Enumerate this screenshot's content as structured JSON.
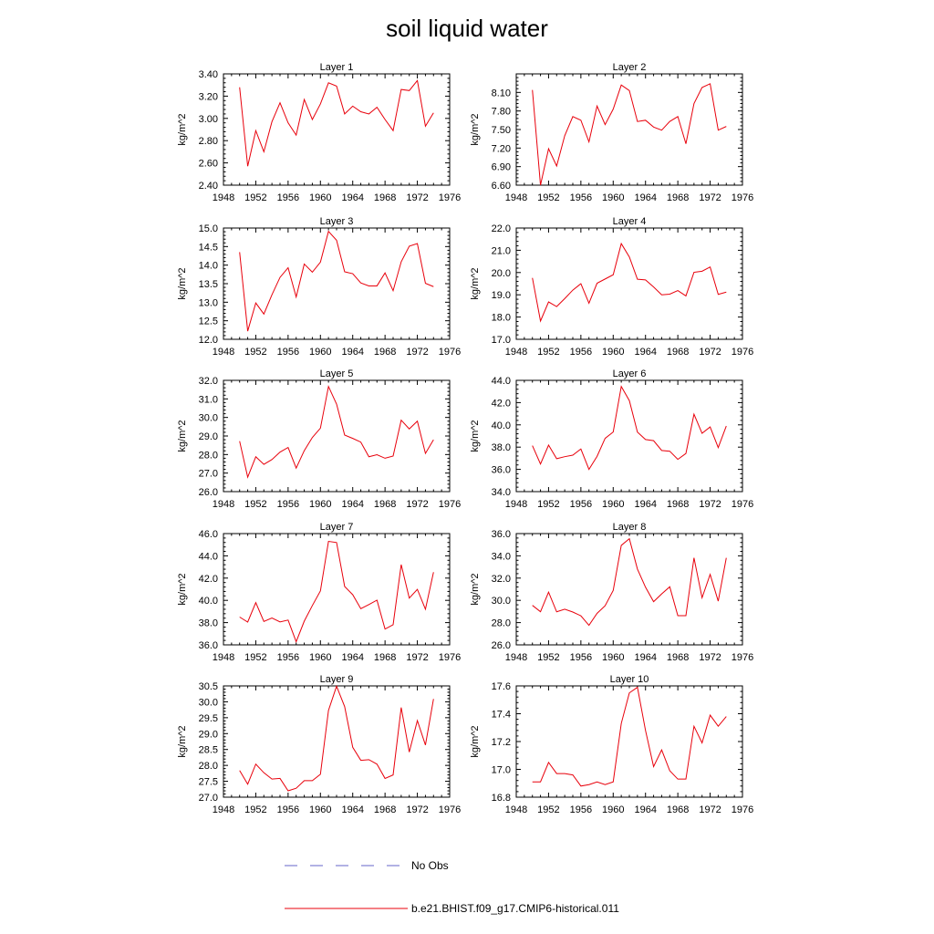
{
  "title": "soil liquid water",
  "legend": {
    "entries": [
      {
        "label": "No Obs",
        "color": "#6464c8",
        "style": "dashed"
      },
      {
        "label": "b.e21.BHIST.f09_g17.CMIP6-historical.011",
        "color": "#e8000b",
        "style": "solid"
      }
    ]
  },
  "chart_data": [
    {
      "type": "line",
      "title": "Layer 1",
      "ylabel": "kg/m^2",
      "xlim": [
        1948,
        1976
      ],
      "ylim": [
        2.4,
        3.4
      ],
      "xticks": [
        1948,
        1952,
        1956,
        1960,
        1964,
        1968,
        1972,
        1976
      ],
      "yticks": [
        "2.40",
        "2.60",
        "2.80",
        "3.00",
        "3.20",
        "3.40"
      ],
      "x": [
        1950,
        1951,
        1952,
        1953,
        1954,
        1955,
        1956,
        1957,
        1958,
        1959,
        1960,
        1961,
        1962,
        1963,
        1964,
        1965,
        1966,
        1967,
        1968,
        1969,
        1970,
        1971,
        1972,
        1973,
        1974
      ],
      "series": [
        {
          "name": "b.e21.BHIST.f09_g17.CMIP6-historical.011",
          "values": [
            3.28,
            2.57,
            2.89,
            2.7,
            2.97,
            3.14,
            2.96,
            2.85,
            3.17,
            2.99,
            3.13,
            3.32,
            3.29,
            3.04,
            3.11,
            3.06,
            3.04,
            3.1,
            2.99,
            2.89,
            3.26,
            3.25,
            3.34,
            2.93,
            3.05
          ]
        }
      ]
    },
    {
      "type": "line",
      "title": "Layer 2",
      "ylabel": "kg/m^2",
      "xlim": [
        1948,
        1976
      ],
      "ylim": [
        6.6,
        8.4
      ],
      "xticks": [
        1948,
        1952,
        1956,
        1960,
        1964,
        1968,
        1972,
        1976
      ],
      "yticks": [
        "6.60",
        "6.90",
        "7.20",
        "7.50",
        "7.80",
        "8.10"
      ],
      "x": [
        1950,
        1951,
        1952,
        1953,
        1954,
        1955,
        1956,
        1957,
        1958,
        1959,
        1960,
        1961,
        1962,
        1963,
        1964,
        1965,
        1966,
        1967,
        1968,
        1969,
        1970,
        1971,
        1972,
        1973,
        1974
      ],
      "series": [
        {
          "name": "b.e21.BHIST.f09_g17.CMIP6-historical.011",
          "values": [
            8.14,
            6.6,
            7.19,
            6.91,
            7.4,
            7.71,
            7.65,
            7.3,
            7.88,
            7.58,
            7.83,
            8.22,
            8.13,
            7.63,
            7.65,
            7.54,
            7.49,
            7.63,
            7.71,
            7.27,
            7.92,
            8.18,
            8.24,
            7.49,
            7.55
          ]
        }
      ]
    },
    {
      "type": "line",
      "title": "Layer 3",
      "ylabel": "kg/m^2",
      "xlim": [
        1948,
        1976
      ],
      "ylim": [
        12.0,
        15.0
      ],
      "xticks": [
        1948,
        1952,
        1956,
        1960,
        1964,
        1968,
        1972,
        1976
      ],
      "yticks": [
        "12.0",
        "12.5",
        "13.0",
        "13.5",
        "14.0",
        "14.5",
        "15.0"
      ],
      "x": [
        1950,
        1951,
        1952,
        1953,
        1954,
        1955,
        1956,
        1957,
        1958,
        1959,
        1960,
        1961,
        1962,
        1963,
        1964,
        1965,
        1966,
        1967,
        1968,
        1969,
        1970,
        1971,
        1972,
        1973,
        1974
      ],
      "series": [
        {
          "name": "b.e21.BHIST.f09_g17.CMIP6-historical.011",
          "values": [
            14.35,
            12.22,
            12.98,
            12.68,
            13.2,
            13.67,
            13.93,
            13.14,
            14.03,
            13.81,
            14.08,
            14.91,
            14.67,
            13.82,
            13.77,
            13.52,
            13.44,
            13.44,
            13.79,
            13.31,
            14.09,
            14.51,
            14.58,
            13.51,
            13.42
          ]
        }
      ]
    },
    {
      "type": "line",
      "title": "Layer 4",
      "ylabel": "kg/m^2",
      "xlim": [
        1948,
        1976
      ],
      "ylim": [
        17.0,
        22.0
      ],
      "xticks": [
        1948,
        1952,
        1956,
        1960,
        1964,
        1968,
        1972,
        1976
      ],
      "yticks": [
        "17.0",
        "18.0",
        "19.0",
        "20.0",
        "21.0",
        "22.0"
      ],
      "x": [
        1950,
        1951,
        1952,
        1953,
        1954,
        1955,
        1956,
        1957,
        1958,
        1959,
        1960,
        1961,
        1962,
        1963,
        1964,
        1965,
        1966,
        1967,
        1968,
        1969,
        1970,
        1971,
        1972,
        1973,
        1974
      ],
      "series": [
        {
          "name": "b.e21.BHIST.f09_g17.CMIP6-historical.011",
          "values": [
            19.76,
            17.82,
            18.68,
            18.47,
            18.83,
            19.21,
            19.5,
            18.62,
            19.52,
            19.71,
            19.9,
            21.3,
            20.7,
            19.7,
            19.67,
            19.35,
            19.0,
            19.03,
            19.19,
            18.95,
            20.01,
            20.06,
            20.25,
            19.02,
            19.12
          ]
        }
      ]
    },
    {
      "type": "line",
      "title": "Layer 5",
      "ylabel": "kg/m^2",
      "xlim": [
        1948,
        1976
      ],
      "ylim": [
        26.0,
        32.0
      ],
      "xticks": [
        1948,
        1952,
        1956,
        1960,
        1964,
        1968,
        1972,
        1976
      ],
      "yticks": [
        "26.0",
        "27.0",
        "28.0",
        "29.0",
        "30.0",
        "31.0",
        "32.0"
      ],
      "x": [
        1950,
        1951,
        1952,
        1953,
        1954,
        1955,
        1956,
        1957,
        1958,
        1959,
        1960,
        1961,
        1962,
        1963,
        1964,
        1965,
        1966,
        1967,
        1968,
        1969,
        1970,
        1971,
        1972,
        1973,
        1974
      ],
      "series": [
        {
          "name": "b.e21.BHIST.f09_g17.CMIP6-historical.011",
          "values": [
            28.72,
            26.78,
            27.88,
            27.47,
            27.73,
            28.13,
            28.38,
            27.27,
            28.21,
            28.92,
            29.42,
            31.67,
            30.72,
            29.05,
            28.87,
            28.67,
            27.88,
            27.99,
            27.8,
            27.92,
            29.85,
            29.38,
            29.8,
            28.06,
            28.8
          ]
        }
      ]
    },
    {
      "type": "line",
      "title": "Layer 6",
      "ylabel": "kg/m^2",
      "xlim": [
        1948,
        1976
      ],
      "ylim": [
        34.0,
        44.0
      ],
      "xticks": [
        1948,
        1952,
        1956,
        1960,
        1964,
        1968,
        1972,
        1976
      ],
      "yticks": [
        "34.0",
        "36.0",
        "38.0",
        "40.0",
        "42.0",
        "44.0"
      ],
      "x": [
        1950,
        1951,
        1952,
        1953,
        1954,
        1955,
        1956,
        1957,
        1958,
        1959,
        1960,
        1961,
        1962,
        1963,
        1964,
        1965,
        1966,
        1967,
        1968,
        1969,
        1970,
        1971,
        1972,
        1973,
        1974
      ],
      "series": [
        {
          "name": "b.e21.BHIST.f09_g17.CMIP6-historical.011",
          "values": [
            38.13,
            36.48,
            38.18,
            36.96,
            37.14,
            37.28,
            37.83,
            36.0,
            37.17,
            38.79,
            39.36,
            43.45,
            42.18,
            39.35,
            38.68,
            38.58,
            37.7,
            37.63,
            36.9,
            37.43,
            40.96,
            39.24,
            39.81,
            37.96,
            39.9
          ]
        }
      ]
    },
    {
      "type": "line",
      "title": "Layer 7",
      "ylabel": "kg/m^2",
      "xlim": [
        1948,
        1976
      ],
      "ylim": [
        36.0,
        46.0
      ],
      "xticks": [
        1948,
        1952,
        1956,
        1960,
        1964,
        1968,
        1972,
        1976
      ],
      "yticks": [
        "36.0",
        "38.0",
        "40.0",
        "42.0",
        "44.0",
        "46.0"
      ],
      "x": [
        1950,
        1951,
        1952,
        1953,
        1954,
        1955,
        1956,
        1957,
        1958,
        1959,
        1960,
        1961,
        1962,
        1963,
        1964,
        1965,
        1966,
        1967,
        1968,
        1969,
        1970,
        1971,
        1972,
        1973,
        1974
      ],
      "series": [
        {
          "name": "b.e21.BHIST.f09_g17.CMIP6-historical.011",
          "values": [
            38.5,
            38.05,
            39.8,
            38.1,
            38.41,
            38.06,
            38.23,
            36.28,
            38.13,
            39.53,
            40.85,
            45.3,
            45.2,
            41.25,
            40.51,
            39.25,
            39.62,
            40.02,
            37.42,
            37.81,
            43.21,
            40.2,
            40.99,
            39.2,
            42.53
          ]
        }
      ]
    },
    {
      "type": "line",
      "title": "Layer 8",
      "ylabel": "kg/m^2",
      "xlim": [
        1948,
        1976
      ],
      "ylim": [
        26.0,
        36.0
      ],
      "xticks": [
        1948,
        1952,
        1956,
        1960,
        1964,
        1968,
        1972,
        1976
      ],
      "yticks": [
        "26.0",
        "28.0",
        "30.0",
        "32.0",
        "34.0",
        "36.0"
      ],
      "x": [
        1950,
        1951,
        1952,
        1953,
        1954,
        1955,
        1956,
        1957,
        1958,
        1959,
        1960,
        1961,
        1962,
        1963,
        1964,
        1965,
        1966,
        1967,
        1968,
        1969,
        1970,
        1971,
        1972,
        1973,
        1974
      ],
      "series": [
        {
          "name": "b.e21.BHIST.f09_g17.CMIP6-historical.011",
          "values": [
            29.55,
            28.98,
            30.74,
            28.97,
            29.2,
            28.95,
            28.61,
            27.76,
            28.83,
            29.52,
            30.89,
            34.94,
            35.54,
            32.81,
            31.18,
            29.88,
            30.58,
            31.22,
            28.62,
            28.62,
            33.82,
            30.23,
            32.33,
            29.93,
            33.82
          ]
        }
      ]
    },
    {
      "type": "line",
      "title": "Layer 9",
      "ylabel": "kg/m^2",
      "xlim": [
        1948,
        1976
      ],
      "ylim": [
        27.0,
        30.5
      ],
      "xticks": [
        1948,
        1952,
        1956,
        1960,
        1964,
        1968,
        1972,
        1976
      ],
      "yticks": [
        "27.0",
        "27.5",
        "28.0",
        "28.5",
        "29.0",
        "29.5",
        "30.0",
        "30.5"
      ],
      "x": [
        1950,
        1951,
        1952,
        1953,
        1954,
        1955,
        1956,
        1957,
        1958,
        1959,
        1960,
        1961,
        1962,
        1963,
        1964,
        1965,
        1966,
        1967,
        1968,
        1969,
        1970,
        1971,
        1972,
        1973,
        1974
      ],
      "series": [
        {
          "name": "b.e21.BHIST.f09_g17.CMIP6-historical.011",
          "values": [
            27.84,
            27.41,
            28.04,
            27.77,
            27.57,
            27.59,
            27.2,
            27.28,
            27.52,
            27.52,
            27.72,
            29.73,
            30.49,
            29.85,
            28.57,
            28.16,
            28.18,
            28.04,
            27.59,
            27.7,
            29.82,
            28.42,
            29.41,
            28.64,
            30.09
          ]
        }
      ]
    },
    {
      "type": "line",
      "title": "Layer 10",
      "ylabel": "kg/m^2",
      "xlim": [
        1948,
        1976
      ],
      "ylim": [
        16.8,
        17.6
      ],
      "xticks": [
        1948,
        1952,
        1956,
        1960,
        1964,
        1968,
        1972,
        1976
      ],
      "yticks": [
        "16.8",
        "17.0",
        "17.2",
        "17.4",
        "17.6"
      ],
      "x": [
        1950,
        1951,
        1952,
        1953,
        1954,
        1955,
        1956,
        1957,
        1958,
        1959,
        1960,
        1961,
        1962,
        1963,
        1964,
        1965,
        1966,
        1967,
        1968,
        1969,
        1970,
        1971,
        1972,
        1973,
        1974
      ],
      "series": [
        {
          "name": "b.e21.BHIST.f09_g17.CMIP6-historical.011",
          "values": [
            16.91,
            16.91,
            17.05,
            16.97,
            16.97,
            16.96,
            16.88,
            16.89,
            16.91,
            16.89,
            16.91,
            17.33,
            17.55,
            17.59,
            17.28,
            17.02,
            17.14,
            16.99,
            16.93,
            16.93,
            17.31,
            17.19,
            17.39,
            17.31,
            17.38
          ]
        }
      ]
    }
  ]
}
